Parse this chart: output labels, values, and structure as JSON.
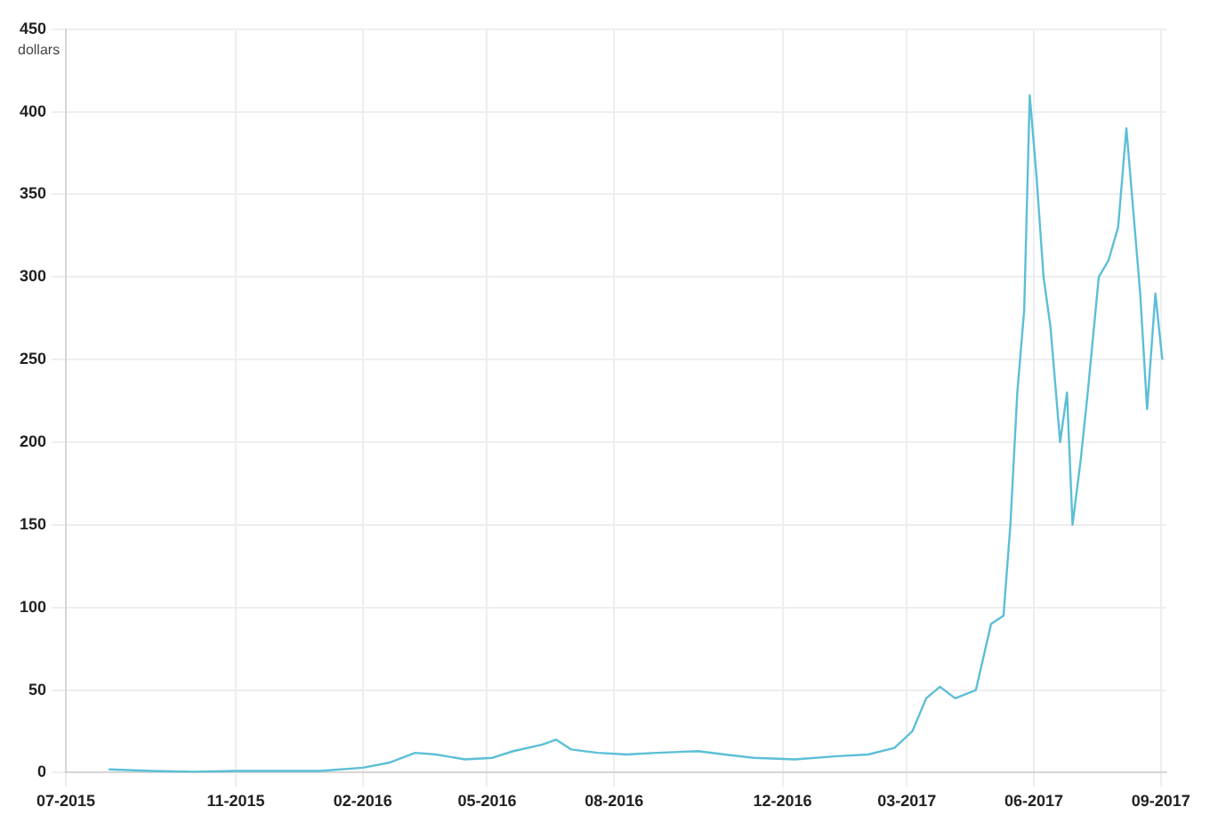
{
  "chart_data": {
    "type": "line",
    "ylabel": "dollars",
    "color": "#5bbfd6",
    "x": [
      "2015-08-01",
      "2015-09-01",
      "2015-10-01",
      "2015-11-01",
      "2015-12-01",
      "2016-01-01",
      "2016-02-01",
      "2016-02-20",
      "2016-03-10",
      "2016-03-25",
      "2016-04-15",
      "2016-05-05",
      "2016-05-20",
      "2016-06-10",
      "2016-06-20",
      "2016-07-01",
      "2016-07-20",
      "2016-08-10",
      "2016-09-01",
      "2016-10-01",
      "2016-10-20",
      "2016-11-10",
      "2016-12-10",
      "2017-01-10",
      "2017-02-01",
      "2017-02-20",
      "2017-03-05",
      "2017-03-15",
      "2017-03-25",
      "2017-04-05",
      "2017-04-20",
      "2017-05-01",
      "2017-05-10",
      "2017-05-15",
      "2017-05-20",
      "2017-05-25",
      "2017-05-29",
      "2017-06-03",
      "2017-06-08",
      "2017-06-13",
      "2017-06-20",
      "2017-06-25",
      "2017-06-29",
      "2017-07-05",
      "2017-07-10",
      "2017-07-18",
      "2017-07-25",
      "2017-08-01",
      "2017-08-07",
      "2017-08-12",
      "2017-08-17",
      "2017-08-22",
      "2017-08-28",
      "2017-09-02"
    ],
    "values": [
      2,
      1,
      0.5,
      1,
      1,
      1,
      3,
      6,
      12,
      11,
      8,
      9,
      13,
      17,
      20,
      14,
      12,
      11,
      12,
      13,
      11,
      9,
      8,
      10,
      11,
      15,
      25,
      45,
      52,
      45,
      50,
      90,
      95,
      150,
      230,
      280,
      410,
      360,
      300,
      270,
      200,
      230,
      150,
      190,
      230,
      300,
      310,
      330,
      390,
      340,
      290,
      220,
      290,
      250
    ],
    "xlim": [
      "2015-07-01",
      "2017-09-05"
    ],
    "xticks": [
      {
        "value": "2015-07-01",
        "label": "07-2015"
      },
      {
        "value": "2015-11-01",
        "label": "11-2015"
      },
      {
        "value": "2016-02-01",
        "label": "02-2016"
      },
      {
        "value": "2016-05-01",
        "label": "05-2016"
      },
      {
        "value": "2016-08-01",
        "label": "08-2016"
      },
      {
        "value": "2016-12-01",
        "label": "12-2016"
      },
      {
        "value": "2017-03-01",
        "label": "03-2017"
      },
      {
        "value": "2017-06-01",
        "label": "06-2017"
      },
      {
        "value": "2017-09-01",
        "label": "09-2017"
      }
    ],
    "ylim": [
      0,
      450
    ],
    "yticks": [
      0,
      50,
      100,
      150,
      200,
      250,
      300,
      350,
      400,
      450
    ],
    "grid": true,
    "marker": "none",
    "line_style": "solid"
  }
}
